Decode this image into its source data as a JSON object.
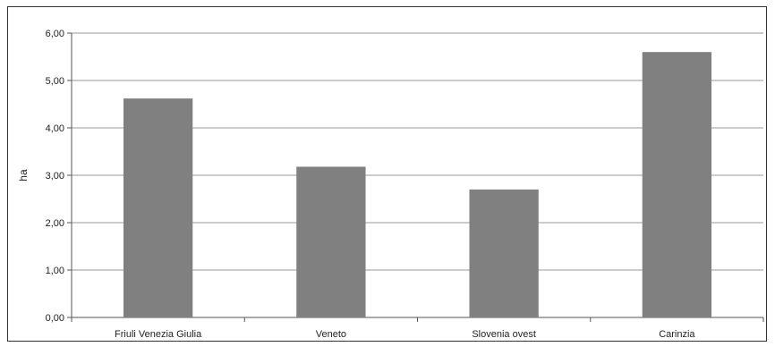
{
  "chart_data": {
    "type": "bar",
    "title": "",
    "xlabel": "",
    "ylabel": "ha",
    "categories": [
      "Friuli Venezia Giulia",
      "Veneto",
      "Slovenia ovest",
      "Carinzia"
    ],
    "values": [
      4.62,
      3.18,
      2.7,
      5.6
    ],
    "ylim": [
      0,
      6
    ],
    "yticks": [
      0,
      1,
      2,
      3,
      4,
      5,
      6
    ],
    "ytick_labels": [
      "0,00",
      "1,00",
      "2,00",
      "3,00",
      "4,00",
      "5,00",
      "6,00"
    ],
    "grid": true,
    "legend": "none",
    "colors": {
      "bar": "#808080",
      "grid": "#9a9a9a",
      "axis": "#555555",
      "frame": "#333333"
    }
  }
}
